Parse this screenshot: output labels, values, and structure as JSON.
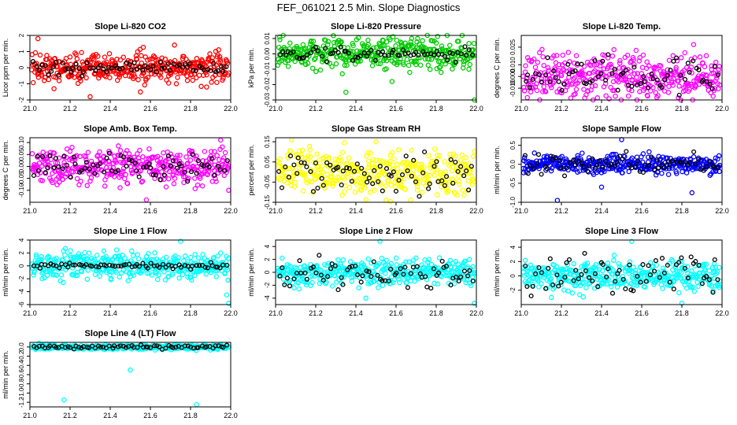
{
  "page_title": "FEF_061021  2.5 Min. Slope Diagnostics",
  "chart_data": [
    {
      "type": "scatter",
      "title": "Slope Li-820 CO2",
      "ylabel": "Licor ppm per min.",
      "color": "#ff0000",
      "xlim": [
        21.0,
        22.0
      ],
      "ylim": [
        -2,
        2
      ],
      "yticks": [
        -2,
        -1,
        0,
        1,
        2
      ],
      "ytick_labels": [
        "-2",
        "-1",
        "0",
        "1",
        "2"
      ],
      "xticks": [
        21.0,
        21.2,
        21.4,
        21.6,
        21.8,
        22.0
      ],
      "xtick_labels": [
        "21.0",
        "21.2",
        "21.4",
        "21.6",
        "21.8",
        "22.0"
      ],
      "spread": 0.45,
      "outliers": [
        [
          21.04,
          1.8
        ],
        [
          21.12,
          -1.3
        ],
        [
          21.3,
          -1.8
        ],
        [
          21.55,
          -1.5
        ],
        [
          21.72,
          1.4
        ],
        [
          21.88,
          -1.2
        ]
      ],
      "black_spread": 0.2
    },
    {
      "type": "scatter",
      "title": "Slope Li-820 Pressure",
      "ylabel": "kPa per min.",
      "color": "#00cc00",
      "xlim": [
        21.0,
        22.0
      ],
      "ylim": [
        -0.03,
        0.012
      ],
      "yticks": [
        -0.03,
        -0.02,
        -0.01,
        0.0,
        0.01
      ],
      "ytick_labels": [
        "-0.03",
        "-0.02",
        "-0.01",
        "0.00",
        "0.01"
      ],
      "xticks": [
        21.0,
        21.2,
        21.4,
        21.6,
        21.8,
        22.0
      ],
      "xtick_labels": [
        "21.0",
        "21.2",
        "21.4",
        "21.6",
        "21.8",
        "22.0"
      ],
      "spread": 0.005,
      "outliers": [
        [
          21.02,
          0.011
        ],
        [
          21.35,
          -0.025
        ],
        [
          21.99,
          -0.03
        ],
        [
          21.58,
          -0.018
        ]
      ],
      "black_spread": 0.002
    },
    {
      "type": "scatter",
      "title": "Slope Li-820 Temp.",
      "ylabel": "degrees C per min.",
      "color": "#ff00ff",
      "xlim": [
        21.0,
        22.0
      ],
      "ylim": [
        -0.02,
        0.035
      ],
      "yticks": [
        -0.01,
        0.0,
        0.01,
        0.025
      ],
      "ytick_labels": [
        "-0.010",
        "0.000",
        "0.010",
        "0.025"
      ],
      "xticks": [
        21.0,
        21.2,
        21.4,
        21.6,
        21.8,
        22.0
      ],
      "xtick_labels": [
        "21.0",
        "21.2",
        "21.4",
        "21.6",
        "21.8",
        "22.0"
      ],
      "spread": 0.009,
      "outliers": [
        [
          21.03,
          -0.018
        ],
        [
          21.55,
          -0.012
        ],
        [
          21.96,
          -0.012
        ]
      ],
      "black_spread": 0.008
    },
    {
      "type": "scatter",
      "title": "Slope Amb. Box Temp.",
      "ylabel": "degrees C per min.",
      "color": "#ff00ff",
      "xlim": [
        21.0,
        22.0
      ],
      "ylim": [
        -0.15,
        0.12
      ],
      "yticks": [
        -0.1,
        -0.05,
        0.0,
        0.05,
        0.1
      ],
      "ytick_labels": [
        "-0.10",
        "-0.05",
        "0.00",
        "0.05",
        "0.10"
      ],
      "xticks": [
        21.0,
        21.2,
        21.4,
        21.6,
        21.8,
        22.0
      ],
      "xtick_labels": [
        "21.0",
        "21.2",
        "21.4",
        "21.6",
        "21.8",
        "22.0"
      ],
      "spread": 0.035,
      "outliers": [
        [
          21.58,
          -0.14
        ],
        [
          21.99,
          -0.1
        ],
        [
          21.95,
          0.11
        ]
      ],
      "black_spread": 0.03
    },
    {
      "type": "scatter",
      "title": "Slope Gas Stream RH",
      "ylabel": "percent per min.",
      "color": "#ffff00",
      "xlim": [
        21.0,
        22.0
      ],
      "ylim": [
        -0.15,
        0.17
      ],
      "yticks": [
        -0.15,
        -0.05,
        0.05,
        0.15
      ],
      "ytick_labels": [
        "-0.15",
        "-0.05",
        "0.05",
        "0.15"
      ],
      "xticks": [
        21.0,
        21.2,
        21.4,
        21.6,
        21.8,
        22.0
      ],
      "xtick_labels": [
        "21.0",
        "21.2",
        "21.4",
        "21.6",
        "21.8",
        "22.0"
      ],
      "spread": 0.05,
      "outliers": [
        [
          21.08,
          0.16
        ],
        [
          21.55,
          -0.14
        ],
        [
          21.5,
          0.15
        ]
      ],
      "black_spread": 0.05
    },
    {
      "type": "scatter",
      "title": "Slope Sample Flow",
      "ylabel": "ml/min per min.",
      "color": "#0000ff",
      "xlim": [
        21.0,
        22.0
      ],
      "ylim": [
        -1.0,
        0.7
      ],
      "yticks": [
        -1.0,
        -0.5,
        0.0,
        0.5
      ],
      "ytick_labels": [
        "-1.0",
        "-0.5",
        "0.0",
        "0.5"
      ],
      "xticks": [
        21.0,
        21.2,
        21.4,
        21.6,
        21.8,
        22.0
      ],
      "xtick_labels": [
        "21.0",
        "21.2",
        "21.4",
        "21.6",
        "21.8",
        "22.0"
      ],
      "spread": 0.12,
      "outliers": [
        [
          21.5,
          0.65
        ],
        [
          21.18,
          -0.95
        ],
        [
          21.4,
          -0.6
        ],
        [
          21.85,
          -0.75
        ]
      ],
      "black_spread": 0.15
    },
    {
      "type": "scatter",
      "title": "Slope Line 1 Flow",
      "ylabel": "ml/min per min.",
      "color": "#00ffff",
      "xlim": [
        21.0,
        22.0
      ],
      "ylim": [
        -6,
        4
      ],
      "yticks": [
        -6,
        -4,
        -2,
        0,
        2,
        4
      ],
      "ytick_labels": [
        "-6",
        "-4",
        "-2",
        "0",
        "2",
        "4"
      ],
      "xticks": [
        21.0,
        21.2,
        21.4,
        21.6,
        21.8,
        22.0
      ],
      "xtick_labels": [
        "21.0",
        "21.2",
        "21.4",
        "21.6",
        "21.8",
        "22.0"
      ],
      "spread": 1.0,
      "outliers": [
        [
          21.75,
          3.8
        ],
        [
          21.99,
          -5.8
        ],
        [
          21.98,
          -4.5
        ]
      ],
      "black_spread": 0.2
    },
    {
      "type": "scatter",
      "title": "Slope Line 2 Flow",
      "ylabel": "ml/min per min.",
      "color": "#00ffff",
      "xlim": [
        21.0,
        22.0
      ],
      "ylim": [
        -5,
        5
      ],
      "yticks": [
        -4,
        -2,
        0,
        2,
        4
      ],
      "ytick_labels": [
        "-4",
        "-2",
        "0",
        "2",
        "4"
      ],
      "xticks": [
        21.0,
        21.2,
        21.4,
        21.6,
        21.8,
        22.0
      ],
      "xtick_labels": [
        "21.0",
        "21.2",
        "21.4",
        "21.6",
        "21.8",
        "22.0"
      ],
      "spread": 1.0,
      "outliers": [
        [
          21.52,
          4.8
        ],
        [
          21.99,
          -4.8
        ],
        [
          21.45,
          -4.0
        ]
      ],
      "black_spread": 1.2
    },
    {
      "type": "scatter",
      "title": "Slope Line 3 Flow",
      "ylabel": "ml/min per min.",
      "color": "#00ffff",
      "xlim": [
        21.0,
        22.0
      ],
      "ylim": [
        -4,
        5
      ],
      "yticks": [
        -2,
        0,
        2,
        4
      ],
      "ytick_labels": [
        "-2",
        "0",
        "2",
        "4"
      ],
      "xticks": [
        21.0,
        21.2,
        21.4,
        21.6,
        21.8,
        22.0
      ],
      "xtick_labels": [
        "21.0",
        "21.2",
        "21.4",
        "21.6",
        "21.8",
        "22.0"
      ],
      "spread": 1.0,
      "outliers": [
        [
          21.55,
          4.8
        ],
        [
          21.8,
          -3.8
        ],
        [
          21.15,
          -3.0
        ]
      ],
      "black_spread": 1.3
    },
    {
      "type": "scatter",
      "title": "Slope Line 4 (LT) Flow",
      "ylabel": "ml/min per min.",
      "color": "#00ffff",
      "xlim": [
        21.0,
        22.0
      ],
      "ylim": [
        -1.3,
        0.1
      ],
      "yticks": [
        -1.2,
        -1.0,
        -0.8,
        -0.6,
        -0.4,
        -0.2,
        0.0
      ],
      "ytick_labels": [
        "-1.2",
        "-1.0",
        "-0.8",
        "-0.6",
        "-0.4",
        "-0.2",
        "0.0"
      ],
      "xticks": [
        21.0,
        21.2,
        21.4,
        21.6,
        21.8,
        22.0
      ],
      "xtick_labels": [
        "21.0",
        "21.2",
        "21.4",
        "21.6",
        "21.8",
        "22.0"
      ],
      "spread": 0.025,
      "outliers": [
        [
          21.17,
          -1.15
        ],
        [
          21.83,
          -1.25
        ],
        [
          21.5,
          -0.5
        ]
      ],
      "black_spread": 0.02
    }
  ]
}
